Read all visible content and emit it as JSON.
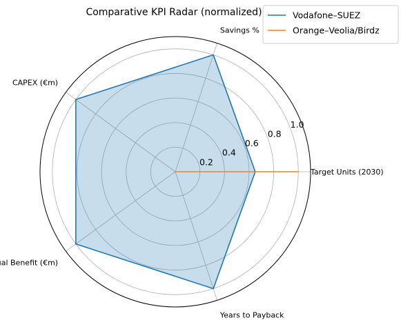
{
  "chart_data": {
    "type": "radar",
    "title": "Comparative KPI Radar (normalized)",
    "axes": [
      "Target Units (2030)",
      "Savings %",
      "CAPEX (€m)",
      "Annual Benefit (€m)",
      "Years to Payback"
    ],
    "rlim": [
      0,
      1.1
    ],
    "r_ticks": [
      0.2,
      0.4,
      0.6,
      0.8,
      1.0
    ],
    "r_tick_labels": [
      "0.2",
      "0.4",
      "0.6",
      "0.8",
      "1.0"
    ],
    "grid": true,
    "legend_position": "top-right",
    "series": [
      {
        "name": "Vodafone–SUEZ",
        "color": "#1f77b4",
        "fill": true,
        "values": [
          0.65,
          1.0,
          1.0,
          1.0,
          1.0
        ]
      },
      {
        "name": "Orange–Veolia/Birdz",
        "color": "#ff7f0e",
        "fill": true,
        "values": [
          1.0,
          0.0,
          0.0,
          0.0,
          0.0
        ]
      }
    ]
  }
}
